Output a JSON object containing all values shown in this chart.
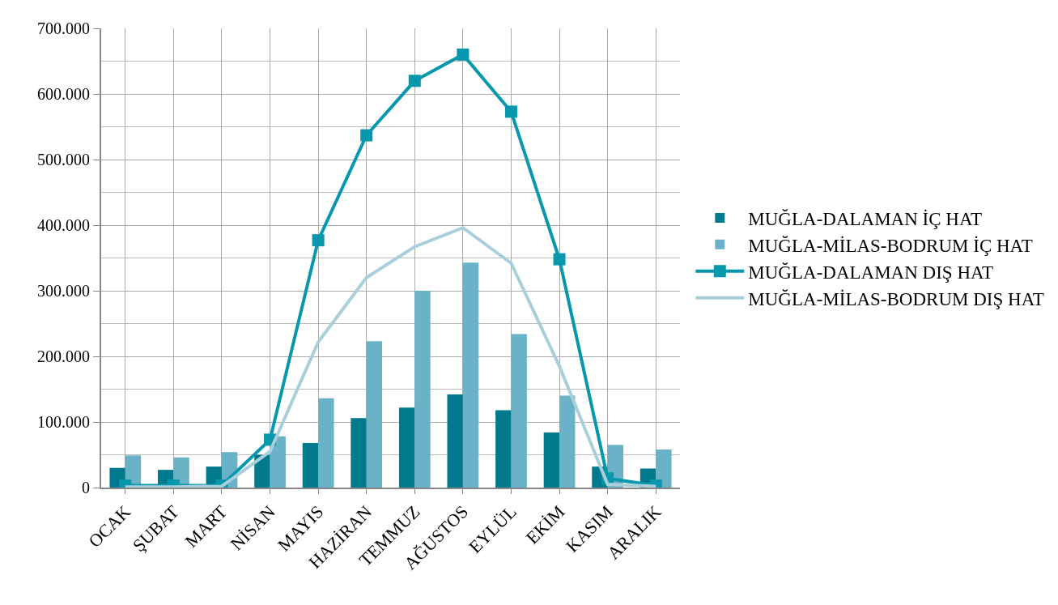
{
  "chart_data": {
    "type": "bar",
    "categories": [
      "OCAK",
      "ŞUBAT",
      "MART",
      "NİSAN",
      "MAYIS",
      "HAZİRAN",
      "TEMMUZ",
      "AĞUSTOS",
      "EYLÜL",
      "EKİM",
      "KASIM",
      "ARALIK"
    ],
    "series": [
      {
        "name": "MUĞLA-DALAMAN İÇ HAT",
        "color": "#007a8c",
        "values": [
          30000,
          27000,
          32000,
          50000,
          68000,
          106000,
          122000,
          142000,
          118000,
          84000,
          32000,
          29000
        ]
      },
      {
        "name": "MUĞLA-MİLAS-BODRUM İÇ HAT",
        "color": "#6ab2c7",
        "values": [
          49000,
          46000,
          54000,
          78000,
          136000,
          223000,
          300000,
          343000,
          234000,
          140000,
          65000,
          58000
        ]
      },
      {
        "name": "MUĞLA-DALAMAN DIŞ HAT",
        "type": "line",
        "marker": "square",
        "color": "#0898ae",
        "values": [
          3000,
          3000,
          3000,
          73000,
          377000,
          537000,
          620000,
          660000,
          573000,
          348000,
          14000,
          3000
        ]
      },
      {
        "name": "MUĞLA-MİLAS-BODRUM DIŞ HAT",
        "type": "line",
        "color": "#a8cfda",
        "values": [
          1000,
          1000,
          2000,
          55000,
          222000,
          320000,
          367000,
          396000,
          342000,
          185000,
          5000,
          2000
        ]
      }
    ],
    "ylim": [
      0,
      700000
    ],
    "yticks": [
      0,
      {
        "value": 100000,
        "label": "100.000"
      },
      {
        "value": 200000,
        "label": "200.000"
      },
      {
        "value": 300000,
        "label": "300.000"
      },
      {
        "value": 400000,
        "label": "400.000"
      },
      {
        "value": 500000,
        "label": "500.000"
      },
      {
        "value": 600000,
        "label": "600.000"
      },
      {
        "value": 700000,
        "label": "700.000"
      }
    ],
    "grid": true,
    "legend": "right"
  }
}
